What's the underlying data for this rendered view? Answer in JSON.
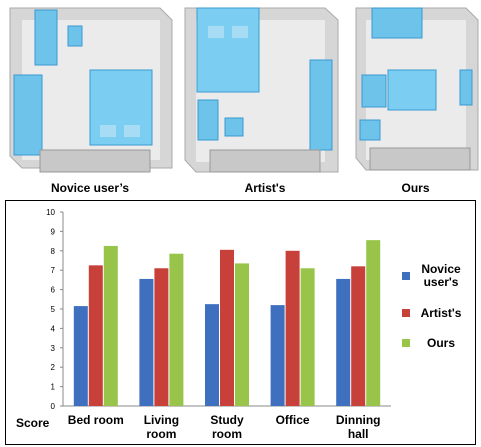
{
  "panels": [
    {
      "caption": "Novice user’s"
    },
    {
      "caption": "Artist's"
    },
    {
      "caption": "Ours"
    }
  ],
  "chart_data": {
    "type": "bar",
    "ylabel": "Score",
    "categories": [
      "Bed room",
      "Living room",
      "Study room",
      "Office",
      "Dinning hall"
    ],
    "series": [
      {
        "name": "Novice user's",
        "color": "#3f6fbf",
        "values": [
          5.15,
          6.55,
          5.25,
          5.2,
          6.55
        ]
      },
      {
        "name": "Artist's",
        "color": "#c8403a",
        "values": [
          7.25,
          7.1,
          8.05,
          8.0,
          7.2
        ]
      },
      {
        "name": "Ours",
        "color": "#98c44a",
        "values": [
          8.25,
          7.85,
          7.35,
          7.1,
          8.55
        ]
      }
    ],
    "ylim": [
      0,
      10
    ],
    "yticks": [
      0,
      1,
      2,
      3,
      4,
      5,
      6,
      7,
      8,
      9,
      10
    ],
    "grid": false,
    "legend": "right"
  }
}
